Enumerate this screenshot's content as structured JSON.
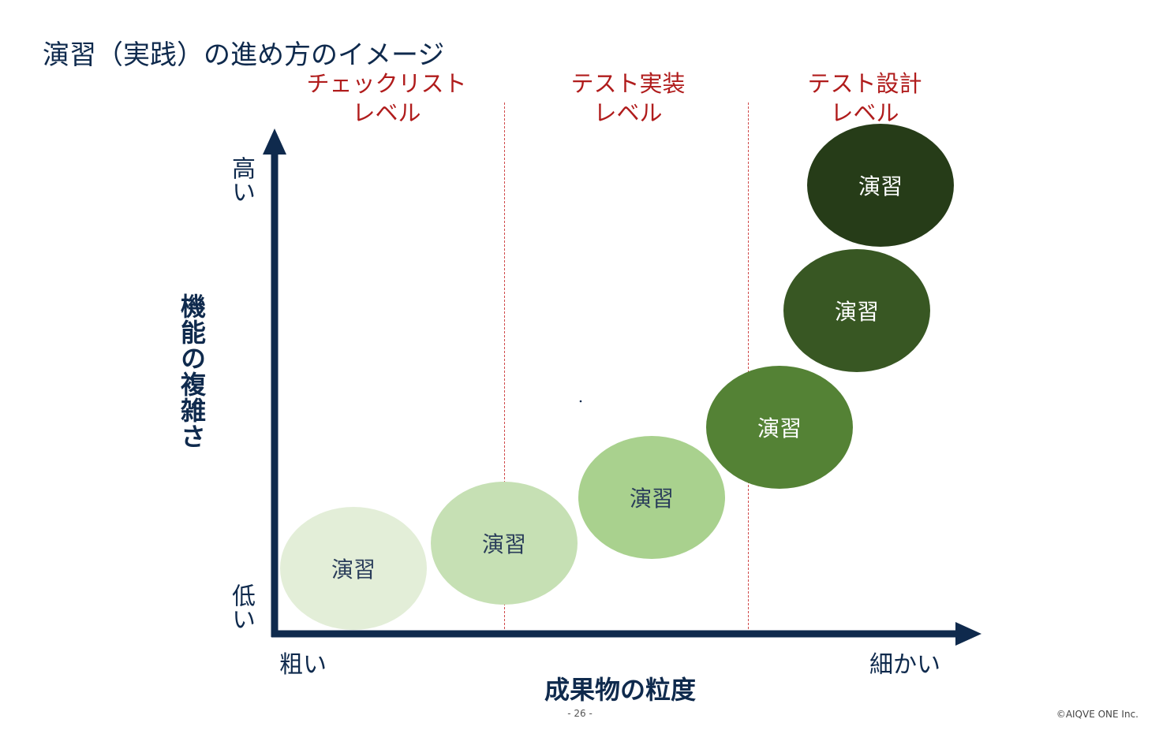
{
  "title": "演習（実践）の進め方のイメージ",
  "levels": [
    {
      "line1": "チェックリスト",
      "line2": "レベル"
    },
    {
      "line1": "テスト実装",
      "line2": "レベル"
    },
    {
      "line1": "テスト設計",
      "line2": "レベル"
    }
  ],
  "y_axis": {
    "title": "機能の複雑さ",
    "high": "高い",
    "low": "低い"
  },
  "x_axis": {
    "title": "成果物の粒度",
    "low": "粗い",
    "high": "細かい"
  },
  "bubbles": [
    {
      "label": "演習",
      "color": "#e3eed8",
      "text_color": "#2a3d5a"
    },
    {
      "label": "演習",
      "color": "#c6e0b4",
      "text_color": "#2a3d5a"
    },
    {
      "label": "演習",
      "color": "#a9d18e",
      "text_color": "#2a3d5a"
    },
    {
      "label": "演習",
      "color": "#548235",
      "text_color": "#ffffff"
    },
    {
      "label": "演習",
      "color": "#385723",
      "text_color": "#ffffff"
    },
    {
      "label": "演習",
      "color": "#263c18",
      "text_color": "#ffffff"
    }
  ],
  "colors": {
    "axis": "#0f2a4d",
    "level_label": "#b01c1c",
    "divider": "#d04a4a"
  },
  "footer": {
    "page": "- 26 -",
    "copyright": "©AIQVE ONE Inc."
  }
}
